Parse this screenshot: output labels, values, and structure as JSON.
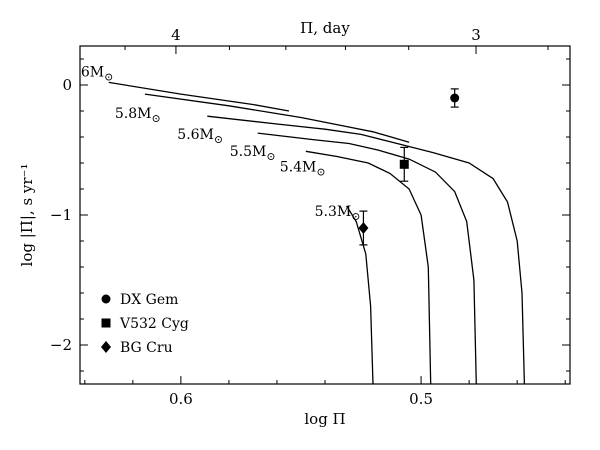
{
  "chart_data": {
    "type": "line",
    "title": "",
    "xlabel": "log Π",
    "x2label": "Π,  day",
    "ylabel": "log |Π̇|,  s yr⁻¹",
    "x_reversed": true,
    "xlim": [
      0.642,
      0.438
    ],
    "ylim": [
      -2.3,
      0.3
    ],
    "x_ticks": [
      0.6,
      0.5
    ],
    "x_tick_labels": [
      "0.6",
      "0.5"
    ],
    "y_ticks": [
      0,
      -1,
      -2
    ],
    "y_tick_labels": [
      "0",
      "−1",
      "−2"
    ],
    "x2_ticks_days": [
      4,
      3
    ],
    "x2_tick_labels": [
      "4",
      "3"
    ],
    "grid": false,
    "legend_position": "bottom-left",
    "series": [
      {
        "name": "6M⊙",
        "label_sub": "⊙",
        "label_main": "6M",
        "points": [
          [
            0.63,
            0.02
          ],
          [
            0.6,
            -0.07
          ],
          [
            0.57,
            -0.15
          ],
          [
            0.555,
            -0.2
          ]
        ]
      },
      {
        "name": "5.8M⊙",
        "label_sub": "⊙",
        "label_main": "5.8M",
        "points": [
          [
            0.615,
            -0.07
          ],
          [
            0.58,
            -0.16
          ],
          [
            0.55,
            -0.25
          ],
          [
            0.52,
            -0.36
          ],
          [
            0.505,
            -0.44
          ]
        ]
      },
      {
        "name": "5.6M⊙",
        "label_sub": "⊙",
        "label_main": "5.6M",
        "points": [
          [
            0.589,
            -0.24
          ],
          [
            0.56,
            -0.3
          ],
          [
            0.54,
            -0.34
          ],
          [
            0.525,
            -0.38
          ],
          [
            0.51,
            -0.45
          ],
          [
            0.495,
            -0.52
          ],
          [
            0.48,
            -0.6
          ],
          [
            0.47,
            -0.72
          ],
          [
            0.464,
            -0.9
          ],
          [
            0.46,
            -1.2
          ],
          [
            0.458,
            -1.6
          ],
          [
            0.457,
            -2.3
          ]
        ]
      },
      {
        "name": "5.5M⊙",
        "label_sub": "⊙",
        "label_main": "5.5M",
        "points": [
          [
            0.568,
            -0.37
          ],
          [
            0.545,
            -0.42
          ],
          [
            0.53,
            -0.45
          ],
          [
            0.518,
            -0.5
          ],
          [
            0.505,
            -0.57
          ],
          [
            0.494,
            -0.67
          ],
          [
            0.486,
            -0.82
          ],
          [
            0.481,
            -1.05
          ],
          [
            0.478,
            -1.5
          ],
          [
            0.477,
            -2.3
          ]
        ]
      },
      {
        "name": "5.4M⊙",
        "label_sub": "⊙",
        "label_main": "5.4M",
        "points": [
          [
            0.548,
            -0.51
          ],
          [
            0.535,
            -0.55
          ],
          [
            0.522,
            -0.6
          ],
          [
            0.513,
            -0.68
          ],
          [
            0.505,
            -0.8
          ],
          [
            0.5,
            -1.0
          ],
          [
            0.497,
            -1.4
          ],
          [
            0.496,
            -2.3
          ]
        ]
      },
      {
        "name": "5.3M⊙",
        "label_sub": "⊙",
        "label_main": "5.3M",
        "points": [
          [
            0.531,
            -0.93
          ],
          [
            0.527,
            -1.05
          ],
          [
            0.523,
            -1.3
          ],
          [
            0.521,
            -1.7
          ],
          [
            0.52,
            -2.3
          ]
        ]
      }
    ],
    "observations": [
      {
        "name": "DX Gem",
        "marker": "circle",
        "x": 0.486,
        "y": -0.1,
        "yerr": 0.07
      },
      {
        "name": "V532 Cyg",
        "marker": "square",
        "x": 0.507,
        "y": -0.61,
        "yerr": 0.13
      },
      {
        "name": "BG Cru",
        "marker": "diamond",
        "x": 0.524,
        "y": -1.1,
        "yerr": 0.13
      }
    ]
  }
}
